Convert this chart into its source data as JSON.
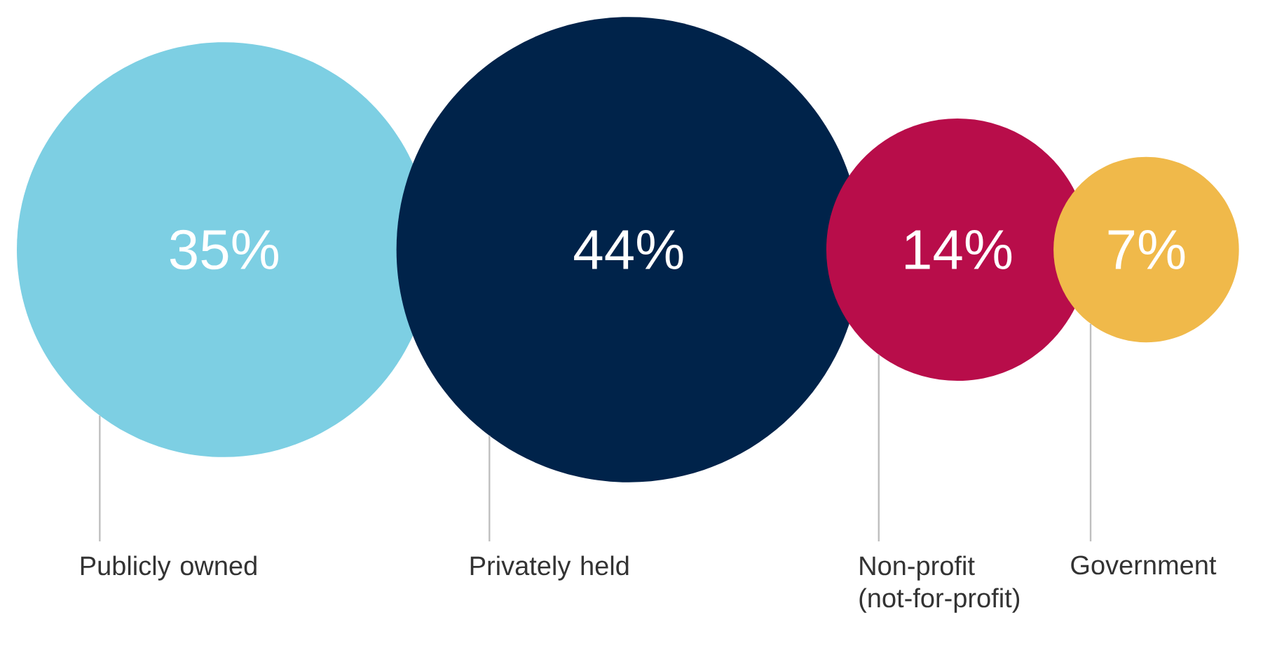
{
  "chart_data": {
    "type": "other",
    "categories": [
      "Publicly owned",
      "Privately held",
      "Non-profit (not-for-profit)",
      "Government"
    ],
    "values": [
      35,
      44,
      14,
      7
    ],
    "value_labels": [
      "35%",
      "44%",
      "14%",
      "7%"
    ],
    "colors": [
      "#7dcfe3",
      "#00234a",
      "#b80d4a",
      "#f0b94a"
    ]
  }
}
